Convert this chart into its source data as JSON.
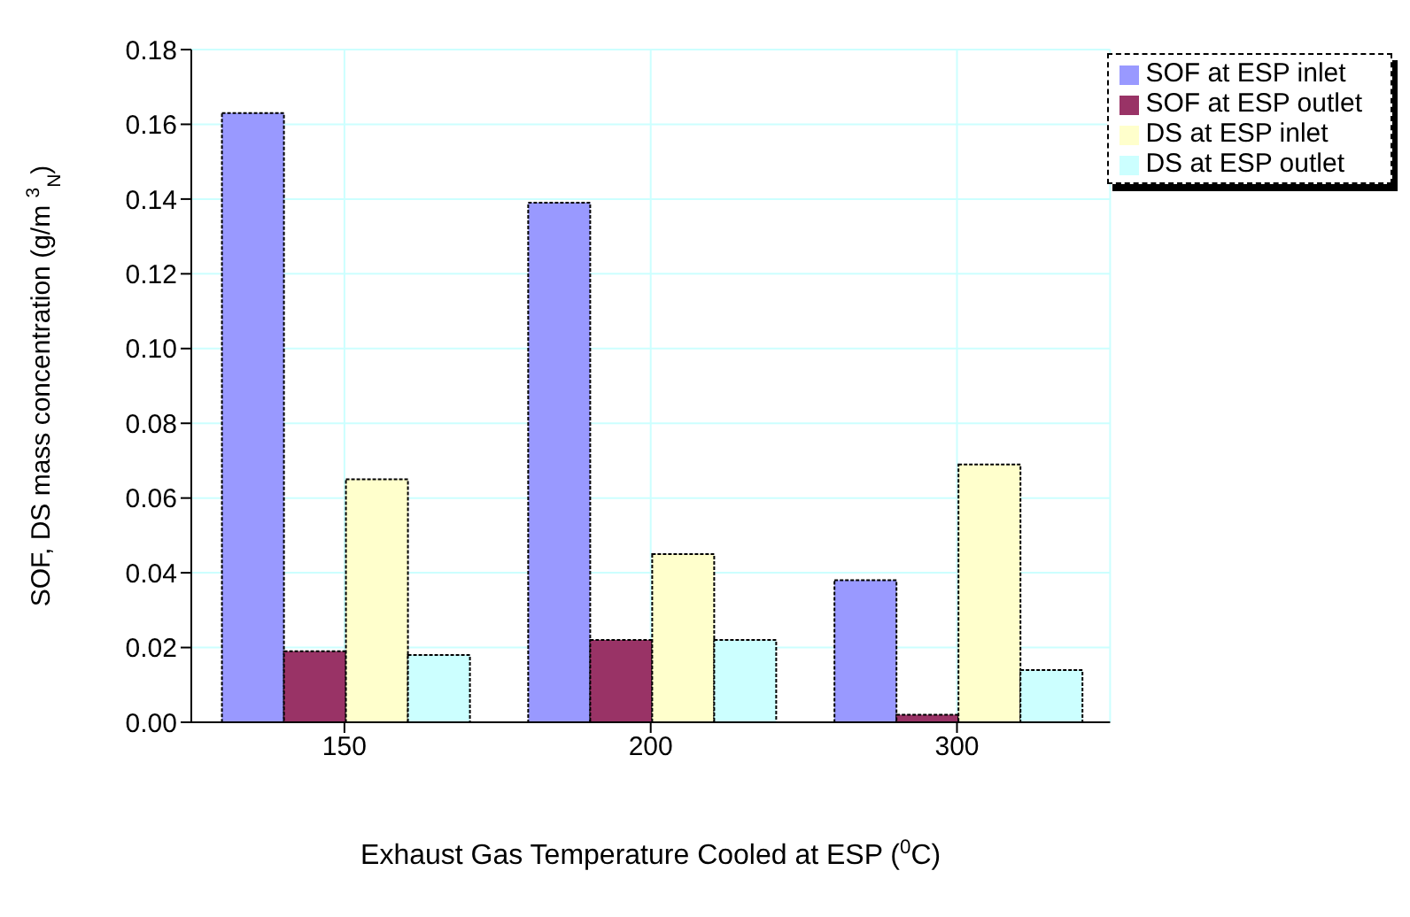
{
  "chart_data": {
    "type": "bar",
    "xlabel": "Exhaust Gas Temperature Cooled at ESP ($^{0}$C)",
    "ylabel": "SOF, DS mass concentration (g/m $^{3}$$_{N}$)",
    "categories": [
      "150",
      "200",
      "300"
    ],
    "series": [
      {
        "name": "SOF at ESP inlet",
        "color": "#9999ff",
        "values": [
          0.163,
          0.139,
          0.038
        ]
      },
      {
        "name": "SOF at ESP outlet",
        "color": "#993366",
        "values": [
          0.019,
          0.022,
          0.002
        ]
      },
      {
        "name": "DS at ESP inlet",
        "color": "#ffffcc",
        "values": [
          0.065,
          0.045,
          0.069
        ]
      },
      {
        "name": "DS at ESP outlet",
        "color": "#ccffff",
        "values": [
          0.018,
          0.022,
          0.014
        ]
      }
    ],
    "ylim": [
      0,
      0.18
    ],
    "yticks": [
      {
        "value": 0,
        "label": "0.00"
      },
      0.02,
      0.04,
      0.06,
      0.08,
      {
        "value": 0.1,
        "label": "0.10"
      },
      0.12,
      0.14,
      0.16,
      0.18
    ],
    "grid": true,
    "legend": "top right"
  }
}
